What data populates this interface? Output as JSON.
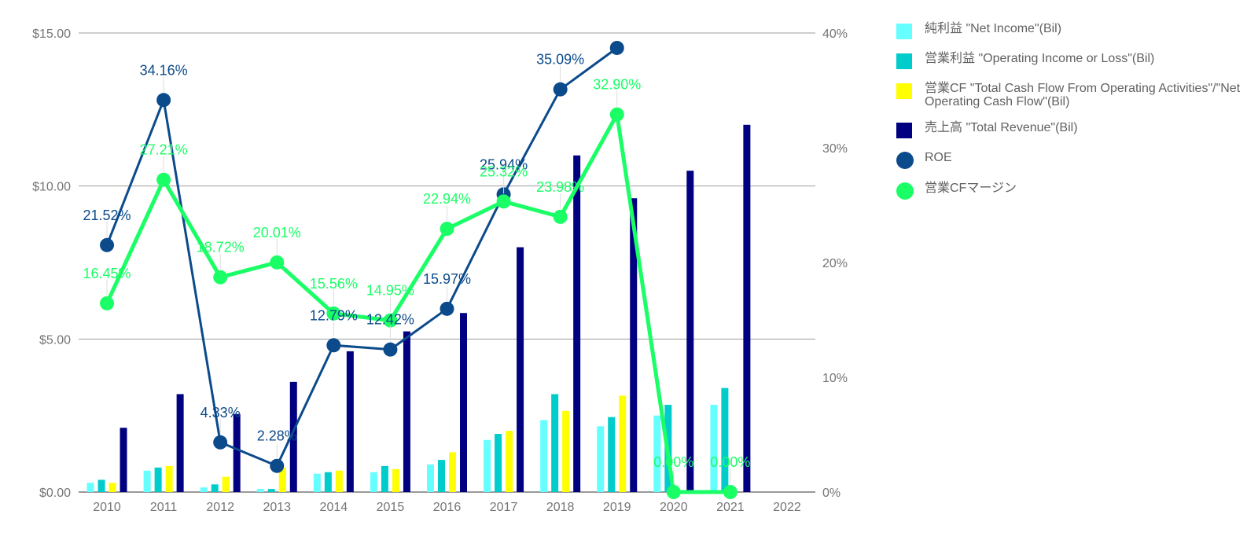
{
  "chart_data": {
    "type": "bar",
    "categories": [
      "2010",
      "2011",
      "2012",
      "2013",
      "2014",
      "2015",
      "2016",
      "2017",
      "2018",
      "2019",
      "2020",
      "2021",
      "2022"
    ],
    "y_left": {
      "ticks": [
        "$0.00",
        "$5.00",
        "$10.00",
        "$15.00"
      ],
      "ylim": [
        0,
        15
      ]
    },
    "y_right": {
      "ticks": [
        "0%",
        "10%",
        "20%",
        "30%",
        "40%"
      ],
      "ylim": [
        0,
        40
      ]
    },
    "grid": true,
    "legend_position": "right",
    "series": [
      {
        "name": "純利益 \"Net Income\"(Bil)",
        "kind": "bar",
        "color": "#66ffff",
        "values": [
          0.3,
          0.7,
          0.15,
          0.1,
          0.6,
          0.65,
          0.9,
          1.7,
          2.35,
          2.15,
          2.5,
          2.85,
          null
        ]
      },
      {
        "name": "営業利益 \"Operating Income or Loss\"(Bil)",
        "kind": "bar",
        "color": "#00cccc",
        "values": [
          0.4,
          0.8,
          0.25,
          0.1,
          0.65,
          0.85,
          1.05,
          1.9,
          3.2,
          2.45,
          2.85,
          3.4,
          null
        ]
      },
      {
        "name": "営業CF \"Total Cash Flow From Operating Activities\"/\"Net Operating Cash Flow\"(Bil)",
        "kind": "bar",
        "color": "#ffff00",
        "values": [
          0.3,
          0.85,
          0.5,
          0.8,
          0.7,
          0.75,
          1.3,
          2.0,
          2.65,
          3.15,
          0,
          0,
          null
        ]
      },
      {
        "name": "売上高 \"Total Revenue\"(Bil)",
        "kind": "bar",
        "color": "#000080",
        "values": [
          2.1,
          3.2,
          2.55,
          3.6,
          4.6,
          5.25,
          5.85,
          8.0,
          11.0,
          9.6,
          10.5,
          12.0,
          null
        ]
      },
      {
        "name": "ROE",
        "kind": "line",
        "axis": "right",
        "color": "#0b4a8b",
        "values": [
          21.52,
          34.16,
          4.33,
          2.28,
          12.79,
          12.42,
          15.97,
          25.94,
          35.09,
          38.7,
          null,
          null,
          null
        ],
        "labels": [
          "21.52%",
          "34.16%",
          "4.33%",
          "2.28%",
          "12.79%",
          "12.42%",
          "15.97%",
          "25.94%",
          "35.09%",
          "",
          "",
          "",
          ""
        ]
      },
      {
        "name": "営業CFマージン",
        "kind": "line",
        "axis": "right",
        "color": "#1aff66",
        "values": [
          16.45,
          27.21,
          18.72,
          20.01,
          15.56,
          14.95,
          22.94,
          25.32,
          23.98,
          32.9,
          0.0,
          0.0,
          null
        ],
        "labels": [
          "16.45%",
          "27.21%",
          "18.72%",
          "20.01%",
          "15.56%",
          "14.95%",
          "22.94%",
          "25.32%",
          "23.98%",
          "32.90%",
          "0.00%",
          "0.00%",
          ""
        ]
      }
    ]
  }
}
